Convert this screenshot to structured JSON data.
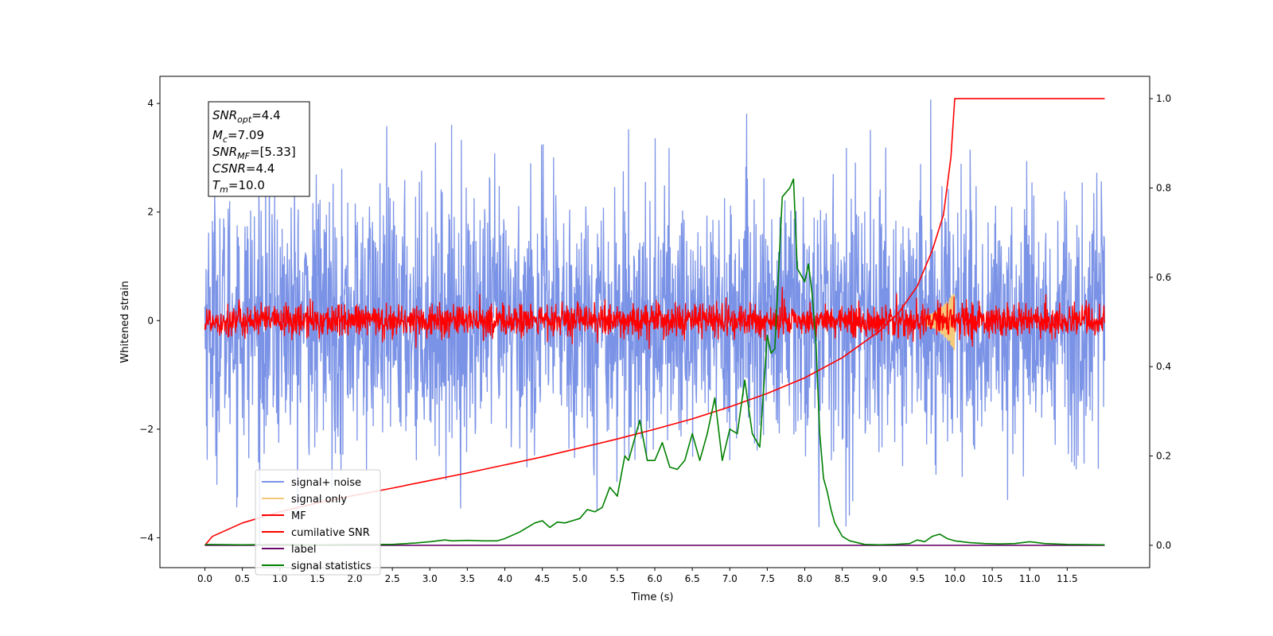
{
  "chart_data": {
    "type": "line",
    "xlabel": "Time (s)",
    "ylabel": "Whitened strain",
    "xlim": [
      -0.6,
      12.6
    ],
    "ylim": [
      -4.55,
      4.5
    ],
    "y2lim": [
      -0.05,
      1.05
    ],
    "xticks": [
      "0.0",
      "0.5",
      "1.0",
      "1.5",
      "2.0",
      "2.5",
      "3.0",
      "3.5",
      "4.0",
      "4.5",
      "5.0",
      "5.5",
      "6.0",
      "6.5",
      "7.0",
      "7.5",
      "8.0",
      "8.5",
      "9.0",
      "9.5",
      "10.0",
      "10.5",
      "11.0",
      "11.5"
    ],
    "xtick_values": [
      0,
      0.5,
      1,
      1.5,
      2,
      2.5,
      3,
      3.5,
      4,
      4.5,
      5,
      5.5,
      6,
      6.5,
      7,
      7.5,
      8,
      8.5,
      9,
      9.5,
      10,
      10.5,
      11,
      11.5
    ],
    "yticks": [
      "−4",
      "−2",
      "0",
      "2",
      "4"
    ],
    "ytick_values": [
      -4,
      -2,
      0,
      2,
      4
    ],
    "y2ticks": [
      "0.0",
      "0.2",
      "0.4",
      "0.6",
      "0.8",
      "1.0"
    ],
    "y2tick_values": [
      0,
      0.2,
      0.4,
      0.6,
      0.8,
      1.0
    ],
    "grid": false,
    "legend_position": "lower-left",
    "annotation": {
      "snr_opt": "4.4",
      "mc": "7.09",
      "snr_mf": "[5.33]",
      "csnr": "4.4",
      "tm": "10.0"
    },
    "series": [
      {
        "name": "signal+ noise",
        "color": "#7b93e6",
        "axis": "left",
        "kind": "noise",
        "amplitude": 1.2,
        "x_range": [
          0,
          12
        ]
      },
      {
        "name": "signal only",
        "color": "#f5c97a",
        "axis": "left",
        "kind": "chirp",
        "x_range": [
          9.6,
          10.0
        ]
      },
      {
        "name": "MF",
        "color": "#ff0000",
        "axis": "left",
        "kind": "noise",
        "amplitude": 0.15,
        "x_range": [
          0,
          12
        ]
      },
      {
        "name": "cumilative SNR",
        "color": "#ff0000",
        "axis": "right",
        "x": [
          0,
          0.1,
          0.5,
          1,
          1.5,
          2,
          2.5,
          3,
          3.5,
          4,
          4.5,
          5,
          5.5,
          6,
          6.5,
          7,
          7.5,
          8,
          8.5,
          9,
          9.25,
          9.5,
          9.7,
          9.85,
          9.95,
          10.0,
          11.0,
          12.0
        ],
        "y": [
          0,
          0.02,
          0.05,
          0.075,
          0.095,
          0.112,
          0.128,
          0.145,
          0.162,
          0.18,
          0.198,
          0.218,
          0.238,
          0.26,
          0.283,
          0.31,
          0.34,
          0.375,
          0.42,
          0.48,
          0.52,
          0.58,
          0.66,
          0.74,
          0.87,
          1.0,
          1.0,
          1.0
        ]
      },
      {
        "name": "label",
        "color": "#6a0a6a",
        "axis": "right",
        "x": [
          0,
          12
        ],
        "y": [
          0,
          0
        ]
      },
      {
        "name": "signal statistics",
        "color": "#008000",
        "axis": "right",
        "x": [
          0,
          0.5,
          1,
          1.5,
          2,
          2.5,
          2.8,
          3.0,
          3.1,
          3.2,
          3.3,
          3.5,
          3.7,
          3.9,
          4.0,
          4.2,
          4.4,
          4.5,
          4.6,
          4.7,
          4.8,
          4.9,
          5.0,
          5.1,
          5.2,
          5.3,
          5.4,
          5.45,
          5.5,
          5.6,
          5.65,
          5.7,
          5.8,
          5.9,
          6.0,
          6.1,
          6.2,
          6.3,
          6.4,
          6.5,
          6.6,
          6.7,
          6.8,
          6.9,
          7.0,
          7.1,
          7.2,
          7.3,
          7.4,
          7.5,
          7.55,
          7.6,
          7.7,
          7.8,
          7.85,
          7.9,
          8.0,
          8.05,
          8.1,
          8.15,
          8.2,
          8.25,
          8.3,
          8.35,
          8.4,
          8.5,
          8.6,
          8.8,
          9.0,
          9.2,
          9.4,
          9.5,
          9.6,
          9.7,
          9.8,
          9.9,
          10.0,
          10.2,
          10.4,
          10.6,
          10.8,
          11.0,
          11.2,
          11.5,
          12.0
        ],
        "y": [
          0.002,
          0.001,
          0.002,
          0.001,
          0.002,
          0.002,
          0.005,
          0.008,
          0.01,
          0.012,
          0.01,
          0.011,
          0.01,
          0.01,
          0.015,
          0.03,
          0.05,
          0.055,
          0.04,
          0.052,
          0.05,
          0.055,
          0.06,
          0.08,
          0.075,
          0.085,
          0.13,
          0.12,
          0.11,
          0.2,
          0.19,
          0.22,
          0.28,
          0.19,
          0.19,
          0.23,
          0.175,
          0.17,
          0.19,
          0.25,
          0.19,
          0.25,
          0.33,
          0.19,
          0.26,
          0.25,
          0.37,
          0.25,
          0.22,
          0.47,
          0.43,
          0.44,
          0.78,
          0.8,
          0.82,
          0.62,
          0.59,
          0.63,
          0.56,
          0.45,
          0.25,
          0.15,
          0.12,
          0.08,
          0.05,
          0.02,
          0.01,
          0.002,
          0.001,
          0.002,
          0.004,
          0.012,
          0.008,
          0.02,
          0.025,
          0.015,
          0.01,
          0.006,
          0.004,
          0.003,
          0.004,
          0.008,
          0.004,
          0.002,
          0.001
        ]
      }
    ]
  }
}
